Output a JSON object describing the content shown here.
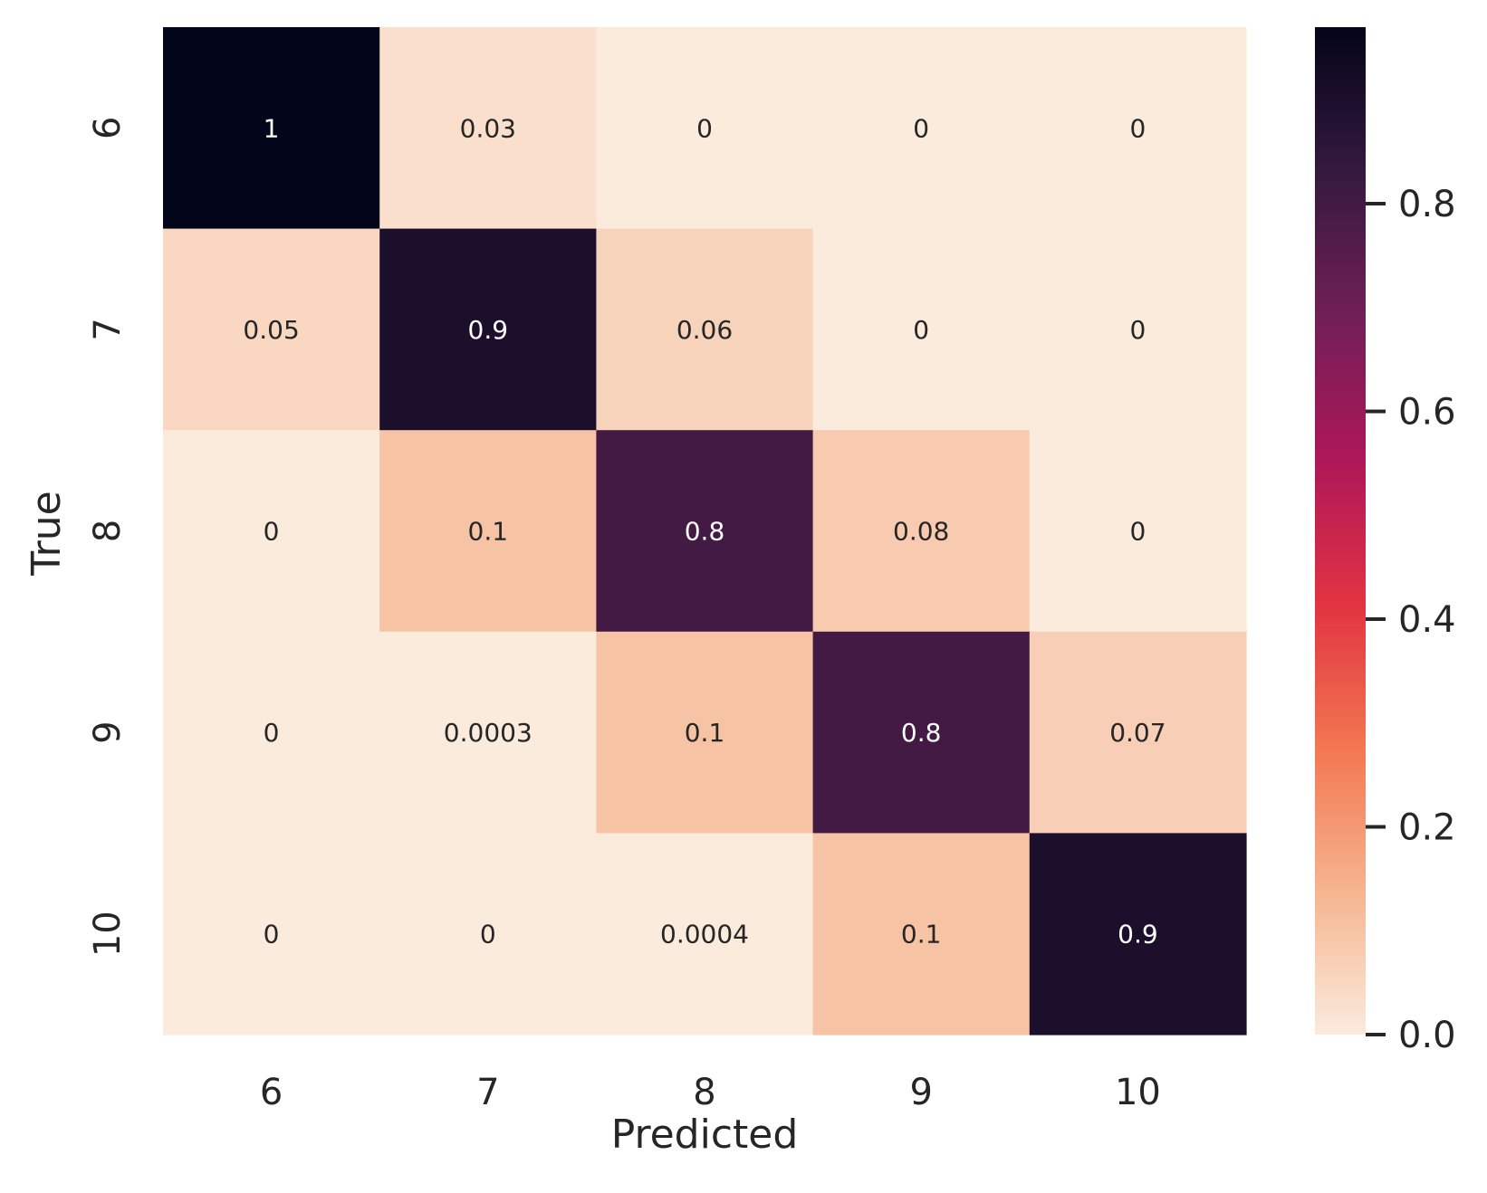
{
  "chart_data": {
    "type": "heatmap",
    "xlabel": "Predicted",
    "ylabel": "True",
    "x_categories": [
      "6",
      "7",
      "8",
      "9",
      "10"
    ],
    "y_categories": [
      "6",
      "7",
      "8",
      "9",
      "10"
    ],
    "values": [
      [
        0.97,
        0.03,
        0,
        0,
        0
      ],
      [
        0.05,
        0.9,
        0.06,
        0,
        0
      ],
      [
        0,
        0.1,
        0.8,
        0.08,
        0
      ],
      [
        0,
        0.0003,
        0.1,
        0.8,
        0.07
      ],
      [
        0,
        0,
        0.0004,
        0.1,
        0.9
      ]
    ],
    "annotations": [
      [
        "1",
        "0.03",
        "0",
        "0",
        "0"
      ],
      [
        "0.05",
        "0.9",
        "0.06",
        "0",
        "0"
      ],
      [
        "0",
        "0.1",
        "0.8",
        "0.08",
        "0"
      ],
      [
        "0",
        "0.0003",
        "0.1",
        "0.8",
        "0.07"
      ],
      [
        "0",
        "0",
        "0.0004",
        "0.1",
        "0.9"
      ]
    ],
    "colorbar": {
      "vmin": 0,
      "vmax": 0.97,
      "ticks": [
        0.0,
        0.2,
        0.4,
        0.6,
        0.8
      ],
      "tick_labels": [
        "0.0",
        "0.2",
        "0.4",
        "0.6",
        "0.8"
      ],
      "colormap": "rocket_r"
    },
    "colormap_stops": [
      "#faebdd",
      "#f6b48f",
      "#f37651",
      "#e13342",
      "#ad1759",
      "#701f57",
      "#35193e",
      "#03051a"
    ],
    "annotation_colors": {
      "light_text": "#ffffff",
      "dark_text": "#262626"
    }
  }
}
